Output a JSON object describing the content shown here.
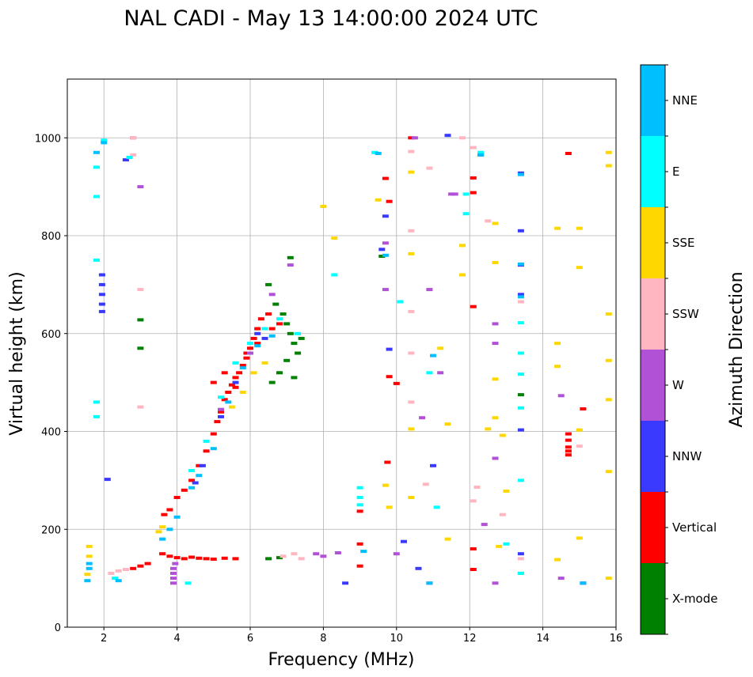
{
  "chart_data": {
    "type": "scatter",
    "title": "NAL CADI - May 13 14:00:00 2024 UTC",
    "xlabel": "Frequency (MHz)",
    "ylabel": "Virtual height (km)",
    "xlim": [
      1,
      16
    ],
    "ylim": [
      0,
      1120
    ],
    "xticks": [
      2,
      4,
      6,
      8,
      10,
      12,
      14,
      16
    ],
    "xtick_labels": [
      "2",
      "4",
      "6",
      "8",
      "10",
      "12",
      "14",
      "16"
    ],
    "yticks": [
      0,
      200,
      400,
      600,
      800,
      1000
    ],
    "ytick_labels": [
      "0",
      "200",
      "400",
      "600",
      "800",
      "1000"
    ],
    "grid": true,
    "colorbar": {
      "title": "Azimuth Direction",
      "categories": [
        "X-mode",
        "Vertical",
        "NNW",
        "W",
        "SSW",
        "SSE",
        "E",
        "NNE"
      ],
      "colors": [
        "#008000",
        "#ff0000",
        "#3a3aff",
        "#b152d6",
        "#ffb6c1",
        "#ffd700",
        "#00ffff",
        "#00bfff"
      ]
    },
    "series": [
      {
        "name": "X-mode",
        "points": [
          [
            6.5,
            700
          ],
          [
            6.7,
            660
          ],
          [
            6.9,
            640
          ],
          [
            7.0,
            620
          ],
          [
            7.1,
            600
          ],
          [
            7.2,
            580
          ],
          [
            7.3,
            560
          ],
          [
            6.8,
            520
          ],
          [
            7.0,
            545
          ],
          [
            7.2,
            510
          ],
          [
            6.6,
            500
          ],
          [
            7.4,
            590
          ],
          [
            7.1,
            755
          ],
          [
            9.6,
            758
          ],
          [
            13.4,
            475
          ],
          [
            3.0,
            570
          ],
          [
            3.0,
            628
          ],
          [
            6.5,
            140
          ],
          [
            6.8,
            142
          ]
        ]
      },
      {
        "name": "Vertical",
        "points": [
          [
            3.65,
            230
          ],
          [
            3.8,
            240
          ],
          [
            4.0,
            265
          ],
          [
            4.2,
            280
          ],
          [
            4.4,
            300
          ],
          [
            4.6,
            330
          ],
          [
            4.8,
            360
          ],
          [
            5.0,
            395
          ],
          [
            5.1,
            420
          ],
          [
            5.2,
            440
          ],
          [
            5.3,
            465
          ],
          [
            5.4,
            480
          ],
          [
            5.5,
            495
          ],
          [
            5.6,
            510
          ],
          [
            5.7,
            520
          ],
          [
            5.8,
            535
          ],
          [
            5.9,
            550
          ],
          [
            6.0,
            570
          ],
          [
            6.1,
            590
          ],
          [
            6.2,
            610
          ],
          [
            6.3,
            630
          ],
          [
            6.5,
            640
          ],
          [
            6.6,
            610
          ],
          [
            6.8,
            620
          ],
          [
            5.0,
            500
          ],
          [
            5.3,
            520
          ],
          [
            5.6,
            490
          ],
          [
            5.9,
            560
          ],
          [
            6.2,
            580
          ],
          [
            3.6,
            150
          ],
          [
            3.8,
            145
          ],
          [
            4.0,
            142
          ],
          [
            4.2,
            140
          ],
          [
            4.4,
            143
          ],
          [
            4.6,
            141
          ],
          [
            4.8,
            140
          ],
          [
            5.0,
            139
          ],
          [
            5.3,
            141
          ],
          [
            5.6,
            140
          ],
          [
            2.8,
            120
          ],
          [
            3.0,
            125
          ],
          [
            3.2,
            130
          ],
          [
            9.0,
            125
          ],
          [
            9.0,
            170
          ],
          [
            9.0,
            237
          ],
          [
            9.7,
            917
          ],
          [
            9.75,
            337
          ],
          [
            9.8,
            512
          ],
          [
            9.8,
            870
          ],
          [
            10.0,
            498
          ],
          [
            10.4,
            1000
          ],
          [
            12.1,
            655
          ],
          [
            12.1,
            888
          ],
          [
            12.1,
            918
          ],
          [
            12.1,
            160
          ],
          [
            12.1,
            118
          ],
          [
            14.7,
            395
          ],
          [
            14.7,
            382
          ],
          [
            14.7,
            368
          ],
          [
            14.7,
            360
          ],
          [
            14.7,
            352
          ],
          [
            15.1,
            446
          ],
          [
            14.7,
            968
          ]
        ]
      },
      {
        "name": "NNW",
        "points": [
          [
            1.95,
            720
          ],
          [
            1.95,
            700
          ],
          [
            1.95,
            680
          ],
          [
            1.95,
            660
          ],
          [
            1.95,
            645
          ],
          [
            4.5,
            295
          ],
          [
            4.7,
            330
          ],
          [
            5.2,
            430
          ],
          [
            5.6,
            500
          ],
          [
            6.2,
            600
          ],
          [
            6.4,
            590
          ],
          [
            9.6,
            772
          ],
          [
            9.8,
            568
          ],
          [
            9.7,
            840
          ],
          [
            10.2,
            175
          ],
          [
            10.6,
            120
          ],
          [
            11.0,
            330
          ],
          [
            11.4,
            1005
          ],
          [
            12.3,
            965
          ],
          [
            13.4,
            928
          ],
          [
            13.4,
            810
          ],
          [
            13.4,
            740
          ],
          [
            13.4,
            680
          ],
          [
            13.4,
            403
          ],
          [
            13.4,
            150
          ],
          [
            8.6,
            90
          ],
          [
            15.1,
            90
          ],
          [
            2.1,
            302
          ],
          [
            2.6,
            955
          ]
        ]
      },
      {
        "name": "W",
        "points": [
          [
            3.9,
            90
          ],
          [
            3.9,
            100
          ],
          [
            3.9,
            110
          ],
          [
            3.9,
            120
          ],
          [
            3.95,
            130
          ],
          [
            5.2,
            445
          ],
          [
            6.0,
            560
          ],
          [
            6.6,
            680
          ],
          [
            7.1,
            740
          ],
          [
            7.8,
            150
          ],
          [
            8.0,
            145
          ],
          [
            8.4,
            152
          ],
          [
            9.7,
            785
          ],
          [
            9.7,
            690
          ],
          [
            10.0,
            150
          ],
          [
            10.5,
            1000
          ],
          [
            10.7,
            428
          ],
          [
            10.9,
            690
          ],
          [
            11.2,
            520
          ],
          [
            11.6,
            885
          ],
          [
            12.4,
            210
          ],
          [
            12.7,
            620
          ],
          [
            12.7,
            580
          ],
          [
            12.7,
            345
          ],
          [
            12.7,
            90
          ],
          [
            14.5,
            473
          ],
          [
            14.5,
            100
          ],
          [
            10.9,
            90
          ],
          [
            11.5,
            885
          ],
          [
            2.8,
            1000
          ],
          [
            3.0,
            900
          ]
        ]
      },
      {
        "name": "SSW",
        "points": [
          [
            2.2,
            110
          ],
          [
            2.4,
            115
          ],
          [
            2.6,
            118
          ],
          [
            6.9,
            145
          ],
          [
            7.2,
            150
          ],
          [
            7.4,
            140
          ],
          [
            10.4,
            972
          ],
          [
            10.4,
            810
          ],
          [
            10.4,
            645
          ],
          [
            10.4,
            560
          ],
          [
            10.4,
            460
          ],
          [
            10.9,
            938
          ],
          [
            10.8,
            292
          ],
          [
            12.1,
            980
          ],
          [
            12.2,
            286
          ],
          [
            12.1,
            258
          ],
          [
            12.5,
            830
          ],
          [
            12.9,
            230
          ],
          [
            13.4,
            665
          ],
          [
            13.4,
            140
          ],
          [
            15.0,
            370
          ],
          [
            11.8,
            1000
          ],
          [
            3.0,
            690
          ],
          [
            3.0,
            450
          ],
          [
            2.8,
            1000
          ],
          [
            2.8,
            965
          ]
        ]
      },
      {
        "name": "SSE",
        "points": [
          [
            1.55,
            108
          ],
          [
            1.6,
            145
          ],
          [
            1.6,
            165
          ],
          [
            3.5,
            195
          ],
          [
            3.6,
            205
          ],
          [
            5.5,
            450
          ],
          [
            5.8,
            480
          ],
          [
            6.1,
            520
          ],
          [
            6.4,
            540
          ],
          [
            8.0,
            860
          ],
          [
            8.3,
            795
          ],
          [
            9.5,
            873
          ],
          [
            9.7,
            290
          ],
          [
            9.8,
            245
          ],
          [
            10.4,
            930
          ],
          [
            10.4,
            763
          ],
          [
            10.4,
            405
          ],
          [
            10.4,
            265
          ],
          [
            11.2,
            570
          ],
          [
            11.4,
            415
          ],
          [
            11.4,
            180
          ],
          [
            11.8,
            780
          ],
          [
            11.8,
            720
          ],
          [
            12.5,
            405
          ],
          [
            12.7,
            745
          ],
          [
            12.7,
            507
          ],
          [
            12.7,
            428
          ],
          [
            12.7,
            825
          ],
          [
            12.9,
            392
          ],
          [
            13.0,
            278
          ],
          [
            12.8,
            165
          ],
          [
            13.4,
            110
          ],
          [
            14.4,
            580
          ],
          [
            14.4,
            533
          ],
          [
            14.4,
            138
          ],
          [
            14.4,
            815
          ],
          [
            15.0,
            735
          ],
          [
            15.0,
            815
          ],
          [
            15.0,
            403
          ],
          [
            15.0,
            182
          ],
          [
            15.8,
            970
          ],
          [
            15.8,
            943
          ],
          [
            15.8,
            640
          ],
          [
            15.8,
            545
          ],
          [
            15.8,
            465
          ],
          [
            15.8,
            318
          ],
          [
            15.8,
            100
          ]
        ]
      },
      {
        "name": "E",
        "points": [
          [
            1.8,
            940
          ],
          [
            1.8,
            880
          ],
          [
            1.8,
            750
          ],
          [
            1.8,
            460
          ],
          [
            1.8,
            430
          ],
          [
            2.3,
            100
          ],
          [
            4.4,
            320
          ],
          [
            4.8,
            380
          ],
          [
            5.2,
            470
          ],
          [
            5.6,
            540
          ],
          [
            6.0,
            580
          ],
          [
            6.4,
            610
          ],
          [
            6.8,
            630
          ],
          [
            7.3,
            600
          ],
          [
            8.3,
            720
          ],
          [
            9.0,
            285
          ],
          [
            9.0,
            265
          ],
          [
            9.0,
            250
          ],
          [
            9.4,
            970
          ],
          [
            10.1,
            665
          ],
          [
            10.9,
            520
          ],
          [
            11.1,
            245
          ],
          [
            11.9,
            885
          ],
          [
            11.9,
            845
          ],
          [
            12.3,
            970
          ],
          [
            13.4,
            622
          ],
          [
            13.4,
            560
          ],
          [
            13.4,
            517
          ],
          [
            13.4,
            448
          ],
          [
            13.4,
            300
          ],
          [
            13.4,
            110
          ],
          [
            13.0,
            170
          ],
          [
            4.3,
            90
          ],
          [
            2.0,
            995
          ],
          [
            2.7,
            960
          ]
        ]
      },
      {
        "name": "NNE",
        "points": [
          [
            1.55,
            95
          ],
          [
            1.6,
            120
          ],
          [
            1.6,
            130
          ],
          [
            3.6,
            180
          ],
          [
            3.8,
            200
          ],
          [
            4.0,
            225
          ],
          [
            4.4,
            285
          ],
          [
            4.6,
            310
          ],
          [
            5.0,
            365
          ],
          [
            5.4,
            460
          ],
          [
            5.8,
            530
          ],
          [
            6.2,
            575
          ],
          [
            6.6,
            595
          ],
          [
            9.1,
            155
          ],
          [
            9.5,
            968
          ],
          [
            9.7,
            760
          ],
          [
            10.9,
            90
          ],
          [
            11.0,
            555
          ],
          [
            12.3,
            965
          ],
          [
            13.4,
            925
          ],
          [
            13.4,
            742
          ],
          [
            13.4,
            675
          ],
          [
            15.1,
            90
          ],
          [
            1.8,
            970
          ],
          [
            2.0,
            990
          ],
          [
            2.4,
            95
          ]
        ]
      }
    ]
  }
}
